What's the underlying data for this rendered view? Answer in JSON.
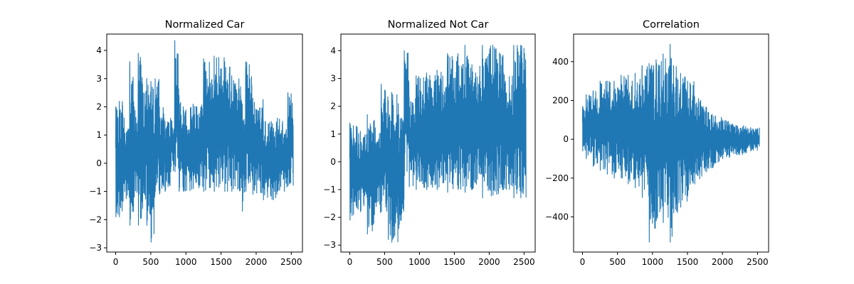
{
  "chart_data": [
    {
      "type": "line",
      "title": "Normalized Car",
      "xlabel": "",
      "ylabel": "",
      "xlim": [
        -127,
        2659
      ],
      "ylim": [
        -3.15,
        4.58
      ],
      "xticks": [
        0,
        500,
        1000,
        1500,
        2000,
        2500
      ],
      "yticks": [
        -3,
        -2,
        -1,
        0,
        1,
        2,
        3,
        4
      ],
      "line_color": "#1f77b4",
      "grid": false,
      "segments": [
        {
          "x": [
            0,
            50
          ],
          "low": -1.9,
          "high": 2.0
        },
        {
          "x": [
            50,
            100
          ],
          "low": -1.9,
          "high": 2.2
        },
        {
          "x": [
            100,
            200
          ],
          "low": -1.35,
          "high": 1.7
        },
        {
          "x": [
            200,
            260
          ],
          "low": -2.2,
          "high": 3.6
        },
        {
          "x": [
            260,
            320
          ],
          "low": -1.2,
          "high": 2.0
        },
        {
          "x": [
            320,
            380
          ],
          "low": -2.2,
          "high": 3.9
        },
        {
          "x": [
            380,
            440
          ],
          "low": -1.6,
          "high": 2.8
        },
        {
          "x": [
            440,
            500
          ],
          "low": -2.2,
          "high": 3.0
        },
        {
          "x": [
            500,
            560
          ],
          "low": -2.8,
          "high": 2.9
        },
        {
          "x": [
            560,
            620
          ],
          "low": -1.0,
          "high": 3.0
        },
        {
          "x": [
            620,
            700
          ],
          "low": -1.1,
          "high": 2.0
        },
        {
          "x": [
            700,
            780
          ],
          "low": -1.0,
          "high": 1.5
        },
        {
          "x": [
            780,
            840
          ],
          "low": -0.3,
          "high": 1.6
        },
        {
          "x": [
            840,
            900
          ],
          "low": -0.3,
          "high": 4.35
        },
        {
          "x": [
            900,
            960
          ],
          "low": -1.0,
          "high": 2.4
        },
        {
          "x": [
            960,
            1100
          ],
          "low": -1.0,
          "high": 2.0
        },
        {
          "x": [
            1100,
            1250
          ],
          "low": -0.9,
          "high": 2.1
        },
        {
          "x": [
            1250,
            1400
          ],
          "low": -1.0,
          "high": 3.7
        },
        {
          "x": [
            1400,
            1550
          ],
          "low": -1.0,
          "high": 3.8
        },
        {
          "x": [
            1550,
            1650
          ],
          "low": -1.0,
          "high": 3.6
        },
        {
          "x": [
            1650,
            1800
          ],
          "low": -1.0,
          "high": 3.1
        },
        {
          "x": [
            1800,
            1850
          ],
          "low": -1.7,
          "high": 2.1
        },
        {
          "x": [
            1850,
            1950
          ],
          "low": -1.0,
          "high": 3.6
        },
        {
          "x": [
            1950,
            2100
          ],
          "low": -1.1,
          "high": 2.3
        },
        {
          "x": [
            2100,
            2300
          ],
          "low": -1.3,
          "high": 1.5
        },
        {
          "x": [
            2300,
            2450
          ],
          "low": -1.0,
          "high": 1.6
        },
        {
          "x": [
            2450,
            2530
          ],
          "low": -0.8,
          "high": 2.5
        }
      ]
    },
    {
      "type": "line",
      "title": "Normalized Not Car",
      "xlabel": "",
      "ylabel": "",
      "xlim": [
        -127,
        2659
      ],
      "ylim": [
        -3.25,
        4.6
      ],
      "xticks": [
        0,
        500,
        1000,
        1500,
        2000,
        2500
      ],
      "yticks": [
        -3,
        -2,
        -1,
        0,
        1,
        2,
        3,
        4
      ],
      "line_color": "#1f77b4",
      "grid": false,
      "segments": [
        {
          "x": [
            0,
            50
          ],
          "low": -2.1,
          "high": 1.4
        },
        {
          "x": [
            50,
            150
          ],
          "low": -1.9,
          "high": 1.3
        },
        {
          "x": [
            150,
            250
          ],
          "low": -1.8,
          "high": 1.1
        },
        {
          "x": [
            250,
            350
          ],
          "low": -2.6,
          "high": 1.7
        },
        {
          "x": [
            350,
            450
          ],
          "low": -1.9,
          "high": 1.5
        },
        {
          "x": [
            450,
            550
          ],
          "low": -1.8,
          "high": 2.8
        },
        {
          "x": [
            550,
            600
          ],
          "low": -2.8,
          "high": 2.2
        },
        {
          "x": [
            600,
            700
          ],
          "low": -2.9,
          "high": 2.5
        },
        {
          "x": [
            700,
            780
          ],
          "low": -2.4,
          "high": 1.7
        },
        {
          "x": [
            780,
            850
          ],
          "low": -0.5,
          "high": 4.0
        },
        {
          "x": [
            850,
            950
          ],
          "low": -0.9,
          "high": 2.3
        },
        {
          "x": [
            950,
            1100
          ],
          "low": -1.0,
          "high": 3.1
        },
        {
          "x": [
            1100,
            1250
          ],
          "low": -1.0,
          "high": 3.2
        },
        {
          "x": [
            1250,
            1400
          ],
          "low": -1.0,
          "high": 3.3
        },
        {
          "x": [
            1400,
            1550
          ],
          "low": -1.1,
          "high": 3.9
        },
        {
          "x": [
            1550,
            1650
          ],
          "low": -1.0,
          "high": 3.9
        },
        {
          "x": [
            1650,
            1750
          ],
          "low": -1.1,
          "high": 4.2
        },
        {
          "x": [
            1750,
            1900
          ],
          "low": -1.0,
          "high": 3.5
        },
        {
          "x": [
            1900,
            2050
          ],
          "low": -1.3,
          "high": 4.2
        },
        {
          "x": [
            2050,
            2200
          ],
          "low": -1.2,
          "high": 4.2
        },
        {
          "x": [
            2200,
            2350
          ],
          "low": -1.0,
          "high": 3.2
        },
        {
          "x": [
            2350,
            2450
          ],
          "low": -1.3,
          "high": 4.2
        },
        {
          "x": [
            2450,
            2530
          ],
          "low": -1.3,
          "high": 4.2
        }
      ]
    },
    {
      "type": "line",
      "title": "Correlation",
      "xlabel": "",
      "ylabel": "",
      "xlim": [
        -127,
        2659
      ],
      "ylim": [
        -581,
        542
      ],
      "xticks": [
        0,
        500,
        1000,
        1500,
        2000,
        2500
      ],
      "yticks": [
        -400,
        -200,
        0,
        200,
        400
      ],
      "line_color": "#1f77b4",
      "grid": false,
      "segments": [
        {
          "x": [
            0,
            50
          ],
          "low": -60,
          "high": 170
        },
        {
          "x": [
            50,
            150
          ],
          "low": -100,
          "high": 230
        },
        {
          "x": [
            150,
            250
          ],
          "low": -140,
          "high": 250
        },
        {
          "x": [
            250,
            350
          ],
          "low": -160,
          "high": 300
        },
        {
          "x": [
            350,
            450
          ],
          "low": -180,
          "high": 300
        },
        {
          "x": [
            450,
            550
          ],
          "low": -200,
          "high": 300
        },
        {
          "x": [
            550,
            650
          ],
          "low": -200,
          "high": 330
        },
        {
          "x": [
            650,
            750
          ],
          "low": -230,
          "high": 330
        },
        {
          "x": [
            750,
            850
          ],
          "low": -250,
          "high": 340
        },
        {
          "x": [
            850,
            950
          ],
          "low": -300,
          "high": 380
        },
        {
          "x": [
            950,
            1050
          ],
          "low": -530,
          "high": 390
        },
        {
          "x": [
            1050,
            1150
          ],
          "low": -420,
          "high": 410
        },
        {
          "x": [
            1150,
            1250
          ],
          "low": -430,
          "high": 440
        },
        {
          "x": [
            1250,
            1300
          ],
          "low": -530,
          "high": 490
        },
        {
          "x": [
            1300,
            1400
          ],
          "low": -380,
          "high": 380
        },
        {
          "x": [
            1400,
            1500
          ],
          "low": -350,
          "high": 340
        },
        {
          "x": [
            1500,
            1600
          ],
          "low": -290,
          "high": 300
        },
        {
          "x": [
            1600,
            1700
          ],
          "low": -230,
          "high": 220
        },
        {
          "x": [
            1700,
            1800
          ],
          "low": -190,
          "high": 170
        },
        {
          "x": [
            1800,
            1900
          ],
          "low": -150,
          "high": 140
        },
        {
          "x": [
            1900,
            2000
          ],
          "low": -120,
          "high": 120
        },
        {
          "x": [
            2000,
            2100
          ],
          "low": -100,
          "high": 100
        },
        {
          "x": [
            2100,
            2200
          ],
          "low": -90,
          "high": 80
        },
        {
          "x": [
            2200,
            2300
          ],
          "low": -80,
          "high": 70
        },
        {
          "x": [
            2300,
            2400
          ],
          "low": -70,
          "high": 70
        },
        {
          "x": [
            2400,
            2530
          ],
          "low": -60,
          "high": 60
        }
      ]
    }
  ]
}
